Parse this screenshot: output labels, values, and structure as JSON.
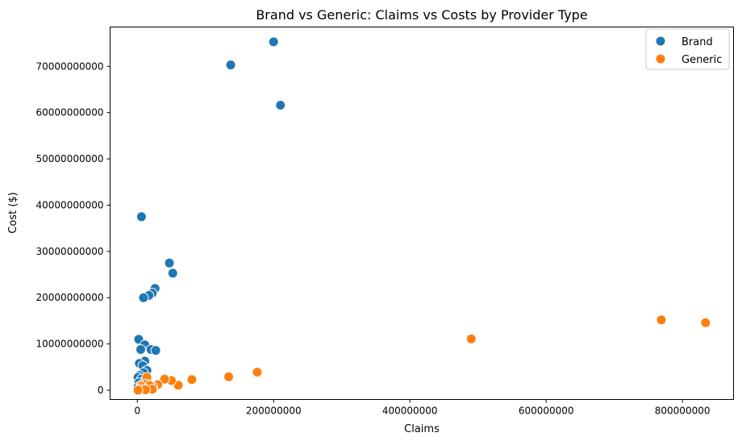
{
  "chart_data": {
    "type": "scatter",
    "title": "Brand vs Generic: Claims vs Costs by Provider Type",
    "xlabel": "Claims",
    "ylabel": "Cost ($)",
    "xlim": [
      -40000000,
      875000000
    ],
    "ylim": [
      -2000000000,
      78500000000
    ],
    "xticks": [
      0,
      200000000,
      400000000,
      600000000,
      800000000
    ],
    "xtick_labels": [
      "0",
      "200000000",
      "400000000",
      "600000000",
      "800000000"
    ],
    "yticks": [
      0,
      10000000000,
      20000000000,
      30000000000,
      40000000000,
      50000000000,
      60000000000,
      70000000000
    ],
    "ytick_labels": [
      "0",
      "10000000000",
      "20000000000",
      "30000000000",
      "40000000000",
      "50000000000",
      "60000000000",
      "70000000000"
    ],
    "grid": false,
    "legend_position": "top-right",
    "series": [
      {
        "name": "Brand",
        "color": "#1f77b4",
        "points": [
          [
            200000000,
            75300000000
          ],
          [
            137000000,
            70300000000
          ],
          [
            210000000,
            61600000000
          ],
          [
            6000000,
            37500000000
          ],
          [
            47000000,
            27500000000
          ],
          [
            52000000,
            25300000000
          ],
          [
            26000000,
            22000000000
          ],
          [
            22000000,
            21000000000
          ],
          [
            17000000,
            20500000000
          ],
          [
            9000000,
            20000000000
          ],
          [
            2000000,
            11000000000
          ],
          [
            11000000,
            9800000000
          ],
          [
            5000000,
            8800000000
          ],
          [
            20000000,
            8800000000
          ],
          [
            27000000,
            8600000000
          ],
          [
            11000000,
            6300000000
          ],
          [
            3000000,
            5800000000
          ],
          [
            8000000,
            5300000000
          ],
          [
            14000000,
            4300000000
          ],
          [
            9000000,
            3800000000
          ],
          [
            3000000,
            3200000000
          ],
          [
            1000000,
            2800000000
          ],
          [
            6000000,
            2400000000
          ],
          [
            11000000,
            2000000000
          ],
          [
            2000000,
            1600000000
          ],
          [
            16000000,
            1500000000
          ],
          [
            7000000,
            1200000000
          ],
          [
            1000000,
            700000000
          ],
          [
            13000000,
            500000000
          ],
          [
            4000000,
            200000000
          ]
        ]
      },
      {
        "name": "Generic",
        "color": "#ff7f0e",
        "points": [
          [
            834000000,
            14600000000
          ],
          [
            769000000,
            15200000000
          ],
          [
            490000000,
            11100000000
          ],
          [
            176000000,
            3900000000
          ],
          [
            134000000,
            2900000000
          ],
          [
            80000000,
            2300000000
          ],
          [
            60000000,
            1100000000
          ],
          [
            50000000,
            2100000000
          ],
          [
            40000000,
            2400000000
          ],
          [
            30000000,
            1200000000
          ],
          [
            23000000,
            700000000
          ],
          [
            14000000,
            2800000000
          ],
          [
            13000000,
            1300000000
          ],
          [
            18000000,
            1000000000
          ],
          [
            9000000,
            500000000
          ],
          [
            5000000,
            900000000
          ],
          [
            3000000,
            300000000
          ],
          [
            22000000,
            200000000
          ],
          [
            12000000,
            100000000
          ],
          [
            1000000,
            0
          ]
        ]
      }
    ]
  }
}
